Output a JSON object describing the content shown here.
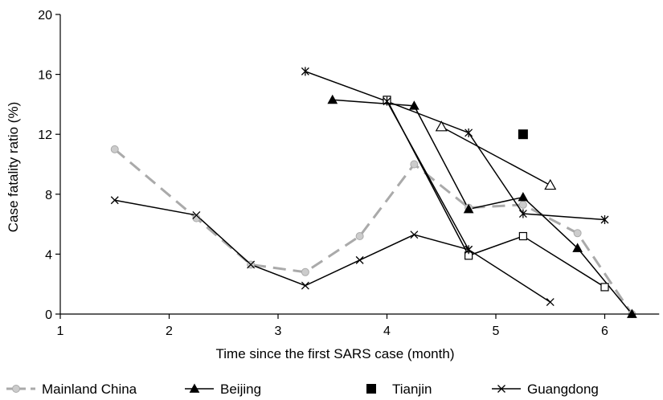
{
  "chart_data": {
    "type": "line",
    "title": "",
    "xlabel": "Time since the first SARS case (month)",
    "ylabel": "Case fatality ratio (%)",
    "xlim": [
      1,
      6.5
    ],
    "ylim": [
      0,
      20
    ],
    "xticks": [
      1,
      2,
      3,
      4,
      5,
      6
    ],
    "yticks": [
      0,
      4,
      8,
      12,
      16,
      20
    ],
    "grid": false,
    "legend_position": "bottom",
    "series": [
      {
        "name": "Mainland China",
        "color": "#aaaaaa",
        "marker": "circle",
        "line": "dashed",
        "segments": [
          [
            [
              1.5,
              11.0
            ],
            [
              2.25,
              6.4
            ],
            [
              2.75,
              3.3
            ],
            [
              3.25,
              2.8
            ],
            [
              3.75,
              5.2
            ],
            [
              4.25,
              10.0
            ],
            [
              4.75,
              7.1
            ],
            [
              5.25,
              7.3
            ],
            [
              5.75,
              5.4
            ],
            [
              6.25,
              0.0
            ]
          ]
        ]
      },
      {
        "name": "Beijing",
        "color": "#000000",
        "marker": "filled-triangle",
        "line": "solid",
        "segments": [
          [
            [
              3.5,
              14.3
            ],
            [
              4.25,
              13.9
            ],
            [
              4.75,
              7.0
            ],
            [
              5.25,
              7.8
            ],
            [
              5.75,
              4.4
            ],
            [
              6.25,
              0.0
            ]
          ]
        ]
      },
      {
        "name": "",
        "color": "#000000",
        "marker": "open-triangle",
        "line": "solid",
        "segments": [
          [
            [
              4.5,
              12.5
            ],
            [
              5.5,
              8.6
            ]
          ]
        ]
      },
      {
        "name": "",
        "color": "#000000",
        "marker": "open-square",
        "line": "solid",
        "segments": [
          [
            [
              4.0,
              14.3
            ],
            [
              4.75,
              3.9
            ],
            [
              5.25,
              5.2
            ],
            [
              6.0,
              1.8
            ]
          ]
        ]
      },
      {
        "name": "Tianjin",
        "color": "#000000",
        "marker": "filled-square",
        "line": "none",
        "segments": [
          [
            [
              5.25,
              12.0
            ]
          ]
        ]
      },
      {
        "name": "Guangdong",
        "color": "#000000",
        "marker": "x",
        "line": "solid",
        "segments": [
          [
            [
              1.5,
              7.6
            ],
            [
              2.25,
              6.6
            ],
            [
              2.75,
              3.3
            ],
            [
              3.25,
              1.9
            ],
            [
              3.75,
              3.6
            ],
            [
              4.25,
              5.3
            ],
            [
              4.75,
              4.3
            ],
            [
              5.5,
              0.8
            ]
          ]
        ]
      },
      {
        "name": "",
        "color": "#000000",
        "marker": "star",
        "line": "solid",
        "segments": [
          [
            [
              3.25,
              16.2
            ],
            [
              4.0,
              14.2
            ],
            [
              4.75,
              12.1
            ],
            [
              5.25,
              6.7
            ],
            [
              6.0,
              6.3
            ]
          ],
          [
            [
              4.0,
              14.2
            ],
            [
              4.75,
              4.3
            ]
          ]
        ]
      }
    ],
    "legend": [
      {
        "label": "Mainland China",
        "marker": "circle",
        "line": "dashed",
        "color": "#aaaaaa"
      },
      {
        "label": "Beijing",
        "marker": "filled-triangle",
        "line": "solid",
        "color": "#000000"
      },
      {
        "label": "Tianjin",
        "marker": "filled-square",
        "line": "none",
        "color": "#000000"
      },
      {
        "label": "Guangdong",
        "marker": "x",
        "line": "solid",
        "color": "#000000"
      }
    ]
  }
}
